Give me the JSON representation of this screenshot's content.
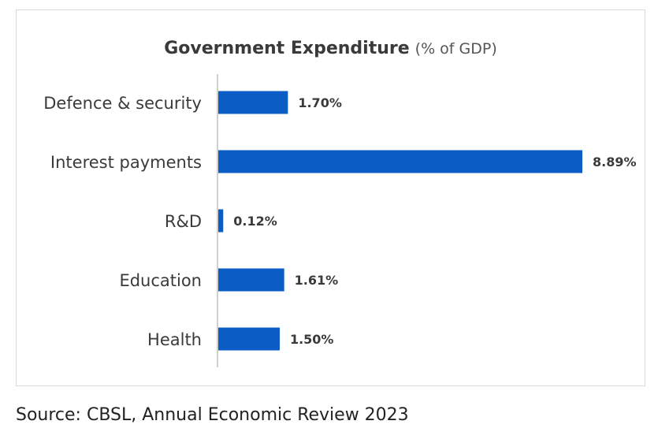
{
  "chart_data": {
    "type": "bar",
    "orientation": "horizontal",
    "title": "Government Expenditure",
    "subtitle": "(% of GDP)",
    "categories": [
      "Defence & security",
      "Interest payments",
      "R&D",
      "Education",
      "Health"
    ],
    "values": [
      1.7,
      8.89,
      0.12,
      1.61,
      1.5
    ],
    "value_labels": [
      "1.70%",
      "8.89%",
      "0.12%",
      "1.61%",
      "1.50%"
    ],
    "xlim": [
      0,
      8.89
    ],
    "grid": false,
    "legend": "none",
    "bar_color": "#0b5cc4"
  },
  "source": "Source: CBSL, Annual Economic Review 2023"
}
